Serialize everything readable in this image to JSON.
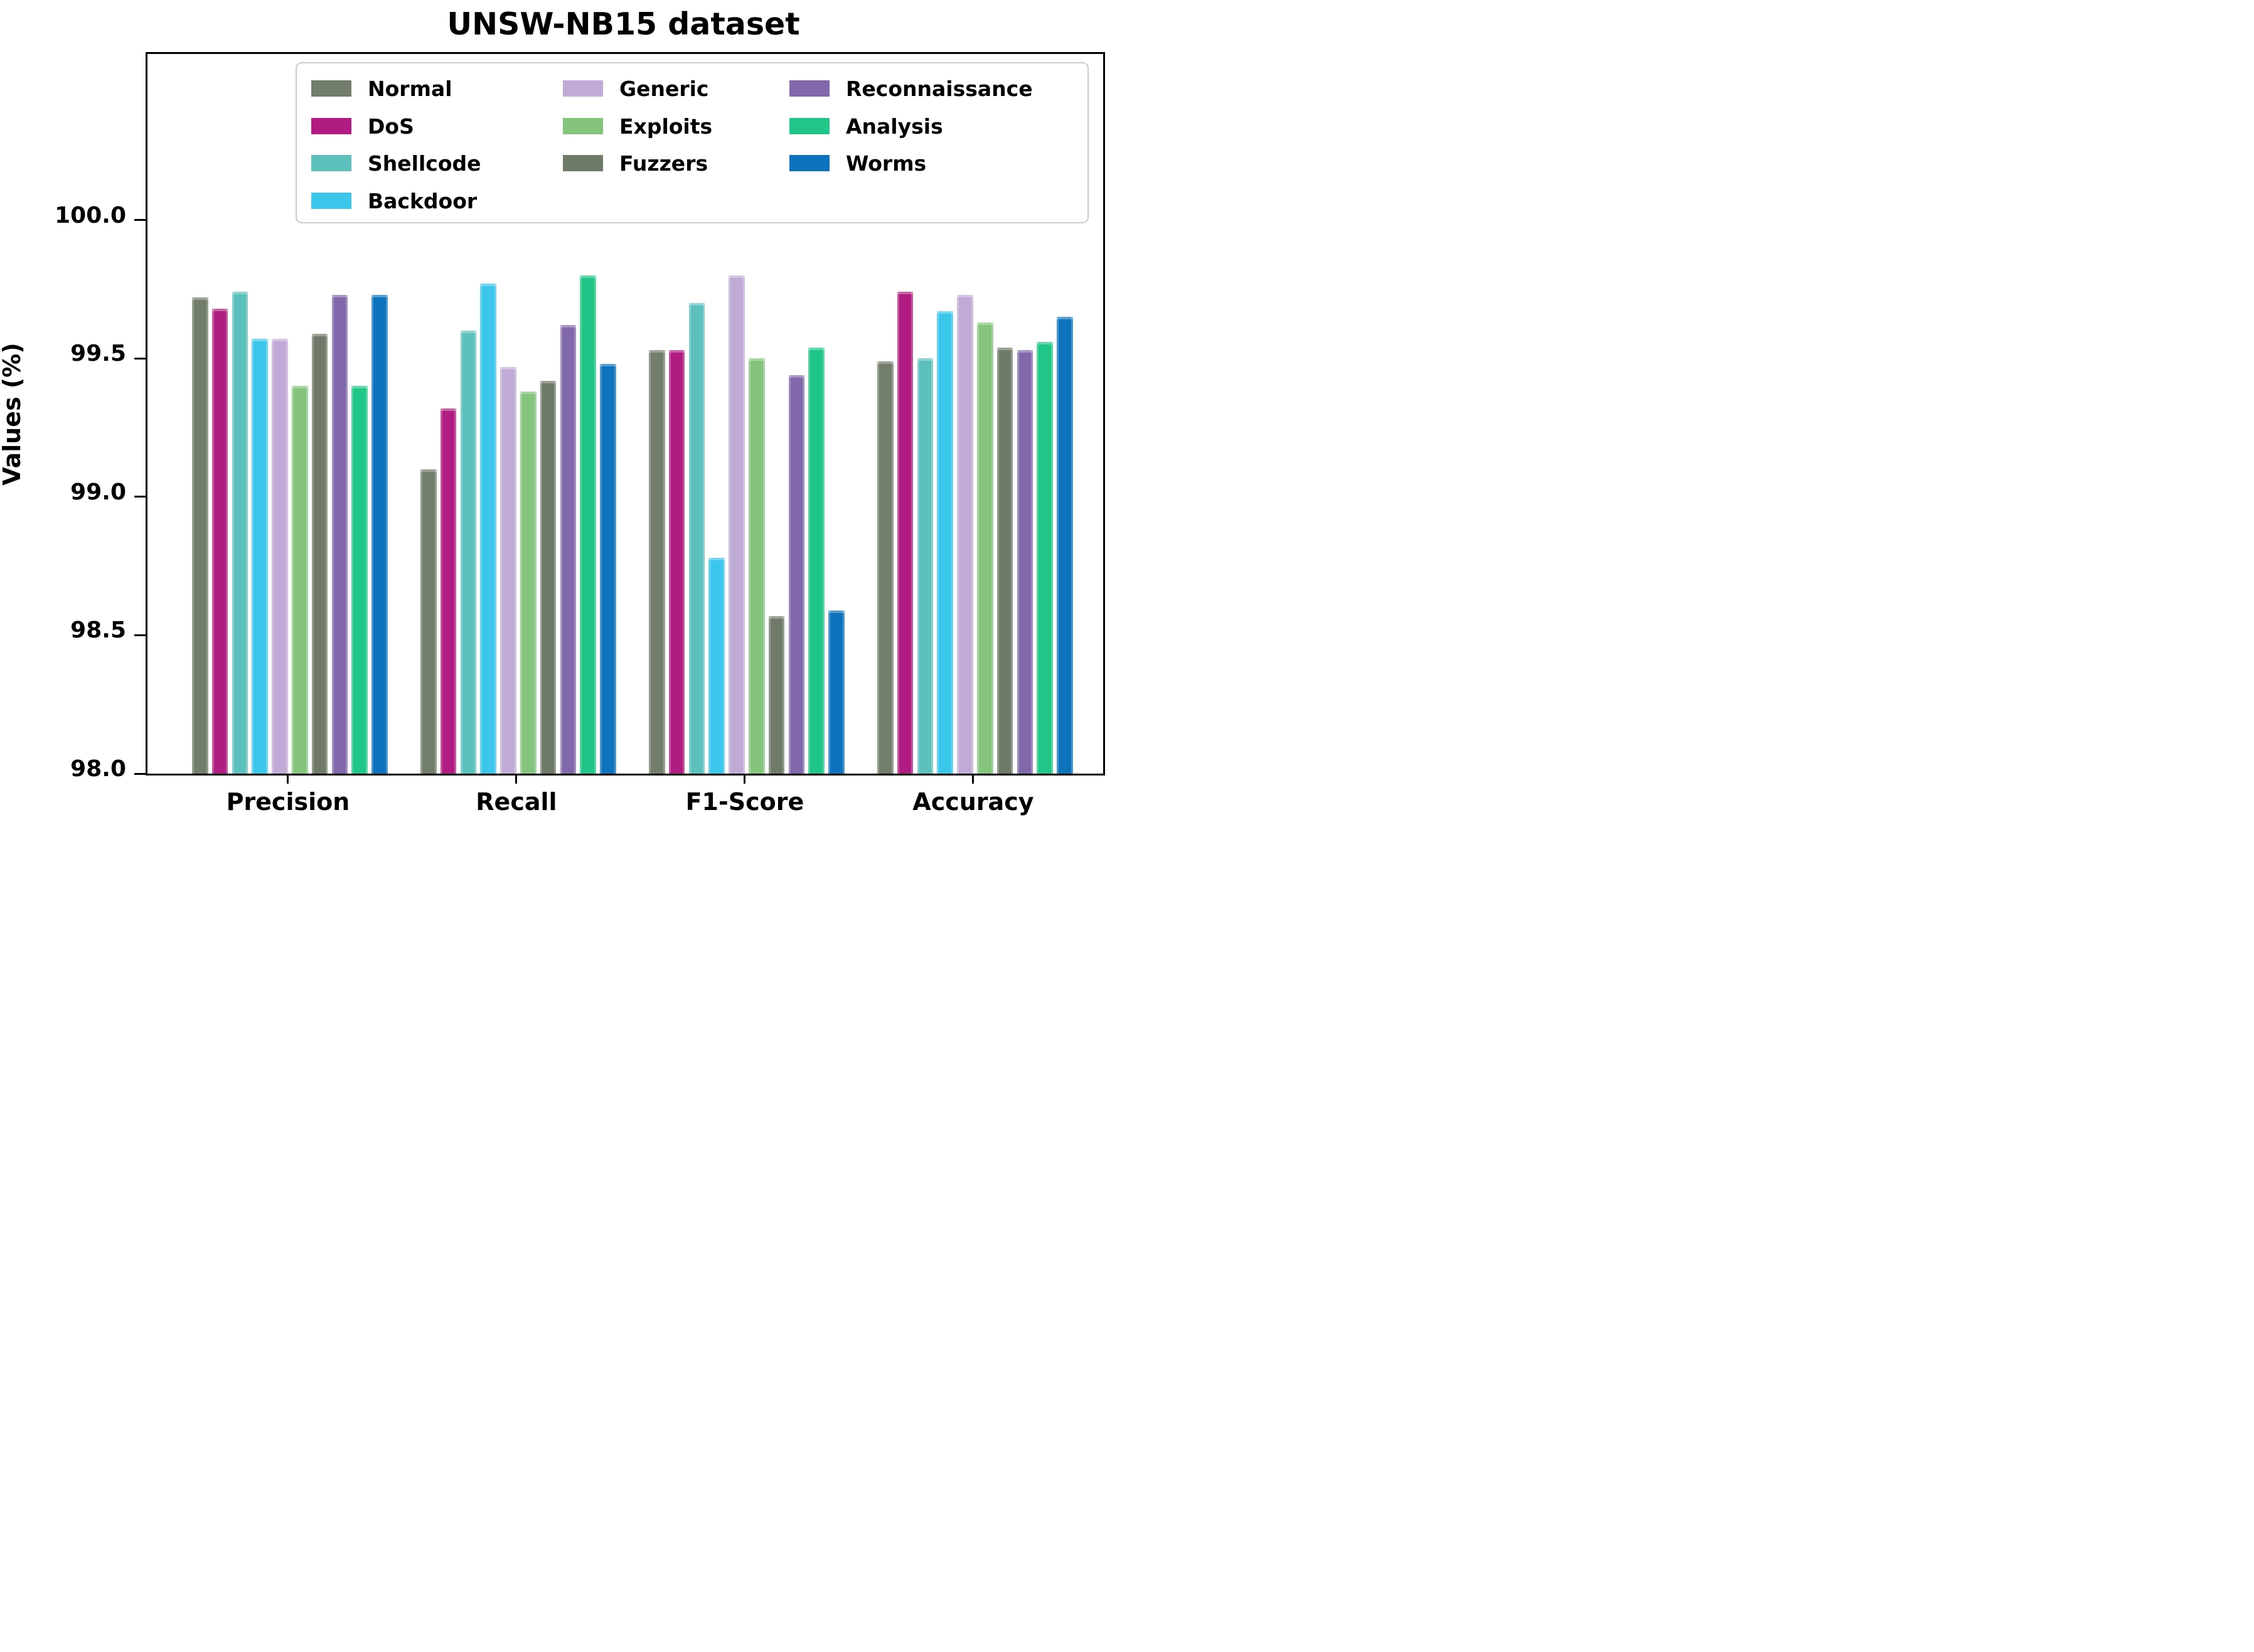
{
  "title": "UNSW-NB15 dataset",
  "chart_data": {
    "type": "bar",
    "title": "UNSW-NB15 dataset",
    "xlabel": "",
    "ylabel": "Values (%)",
    "categories": [
      "Precision",
      "Recall",
      "F1-Score",
      "Accuracy"
    ],
    "series": [
      {
        "name": "Normal",
        "color": "#727d6c",
        "values": [
          99.72,
          99.1,
          99.53,
          99.49
        ]
      },
      {
        "name": "DoS",
        "color": "#b11c82",
        "values": [
          99.68,
          99.32,
          99.53,
          99.74
        ]
      },
      {
        "name": "Shellcode",
        "color": "#5cc0bd",
        "values": [
          99.74,
          99.6,
          99.7,
          99.5
        ]
      },
      {
        "name": "Backdoor",
        "color": "#3bc6ec",
        "values": [
          99.57,
          99.77,
          98.78,
          99.67
        ]
      },
      {
        "name": "Generic",
        "color": "#c0abd6",
        "values": [
          99.57,
          99.47,
          99.8,
          99.73
        ]
      },
      {
        "name": "Exploits",
        "color": "#85c47c",
        "values": [
          99.4,
          99.38,
          99.5,
          99.63
        ]
      },
      {
        "name": "Fuzzers",
        "color": "#6f7a69",
        "values": [
          99.59,
          99.42,
          98.57,
          99.54
        ]
      },
      {
        "name": "Reconnaissance",
        "color": "#8168ab",
        "values": [
          99.73,
          99.62,
          99.44,
          99.53
        ]
      },
      {
        "name": "Analysis",
        "color": "#20c687",
        "values": [
          99.4,
          99.8,
          99.54,
          99.56
        ]
      },
      {
        "name": "Worms",
        "color": "#0e73bd",
        "values": [
          99.73,
          99.48,
          98.59,
          99.65
        ]
      }
    ],
    "yticks": [
      98.0,
      98.5,
      99.0,
      99.5,
      100.0
    ],
    "ytick_labels": [
      "98.0",
      "98.5",
      "99.0",
      "99.5",
      "100.0"
    ],
    "ylim": [
      98.0,
      100.6
    ],
    "grid": false,
    "legend_position": "upper-center-inside",
    "legend_columns": [
      [
        "Normal",
        "DoS",
        "Shellcode",
        "Backdoor"
      ],
      [
        "Generic",
        "Exploits",
        "Fuzzers"
      ],
      [
        "Reconnaissance",
        "Analysis",
        "Worms"
      ]
    ]
  }
}
